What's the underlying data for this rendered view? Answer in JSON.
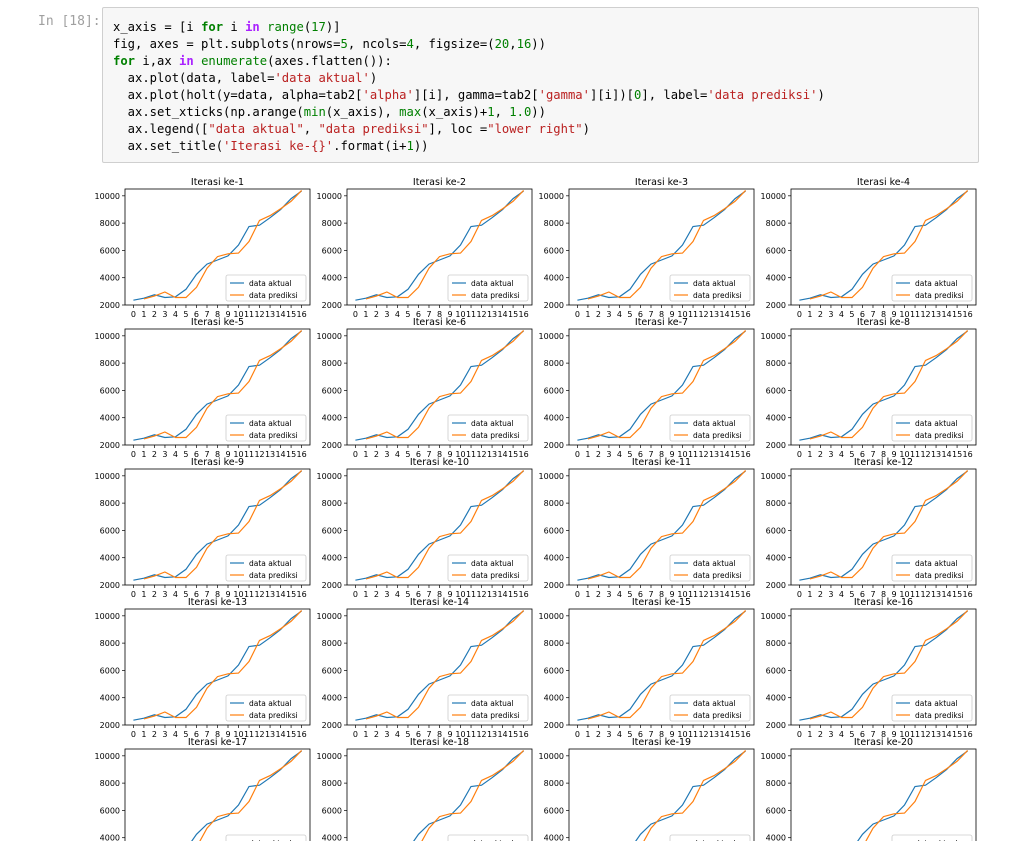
{
  "cell": {
    "prompt": "In [18]:",
    "code_lines": [
      "x_axis = [i for i in range(17)]",
      "fig, axes = plt.subplots(nrows=5, ncols=4, figsize=(20,16))",
      "for i,ax in enumerate(axes.flatten()):",
      "  ax.plot(data, label='data aktual')",
      "  ax.plot(holt(y=data, alpha=tab2['alpha'][i], gamma=tab2['gamma'][i])[0], label='data prediksi')",
      "  ax.set_xticks(np.arange(min(x_axis), max(x_axis)+1, 1.0))",
      "  ax.legend([\"data aktual\", \"data prediksi\"], loc =\"lower right\")",
      "  ax.set_title('Iterasi ke-{}'.format(i+1))"
    ]
  },
  "chart_data": {
    "type": "line",
    "layout": "5 rows x 4 columns of subplots",
    "titles": [
      "Iterasi ke-1",
      "Iterasi ke-2",
      "Iterasi ke-3",
      "Iterasi ke-4",
      "Iterasi ke-5",
      "Iterasi ke-6",
      "Iterasi ke-7",
      "Iterasi ke-8",
      "Iterasi ke-9",
      "Iterasi ke-10",
      "Iterasi ke-11",
      "Iterasi ke-12",
      "Iterasi ke-13",
      "Iterasi ke-14",
      "Iterasi ke-15",
      "Iterasi ke-16",
      "Iterasi ke-17",
      "Iterasi ke-18",
      "Iterasi ke-19",
      "Iterasi ke-20"
    ],
    "x": [
      0,
      1,
      2,
      3,
      4,
      5,
      6,
      7,
      8,
      9,
      10,
      11,
      12,
      13,
      14,
      15,
      16
    ],
    "xticks": [
      "0",
      "1",
      "2",
      "3",
      "4",
      "5",
      "6",
      "7",
      "8",
      "9",
      "10",
      "11",
      "12",
      "13",
      "14",
      "15",
      "16"
    ],
    "yticks": [
      2000,
      4000,
      6000,
      8000,
      10000
    ],
    "ylim": [
      2000,
      10500
    ],
    "legend_position": "lower right",
    "series": [
      {
        "name": "data aktual",
        "color": "#1f77b4",
        "values": [
          2350,
          2500,
          2750,
          2550,
          2600,
          3150,
          4250,
          5000,
          5300,
          5600,
          6400,
          7750,
          7850,
          8400,
          9000,
          9800,
          10350
        ]
      },
      {
        "name": "data prediksi",
        "color": "#ff7f0e",
        "values": [
          null,
          2450,
          2650,
          2950,
          2550,
          2550,
          3300,
          4700,
          5550,
          5750,
          5800,
          6650,
          8200,
          8550,
          9050,
          9600,
          10400
        ]
      }
    ]
  }
}
